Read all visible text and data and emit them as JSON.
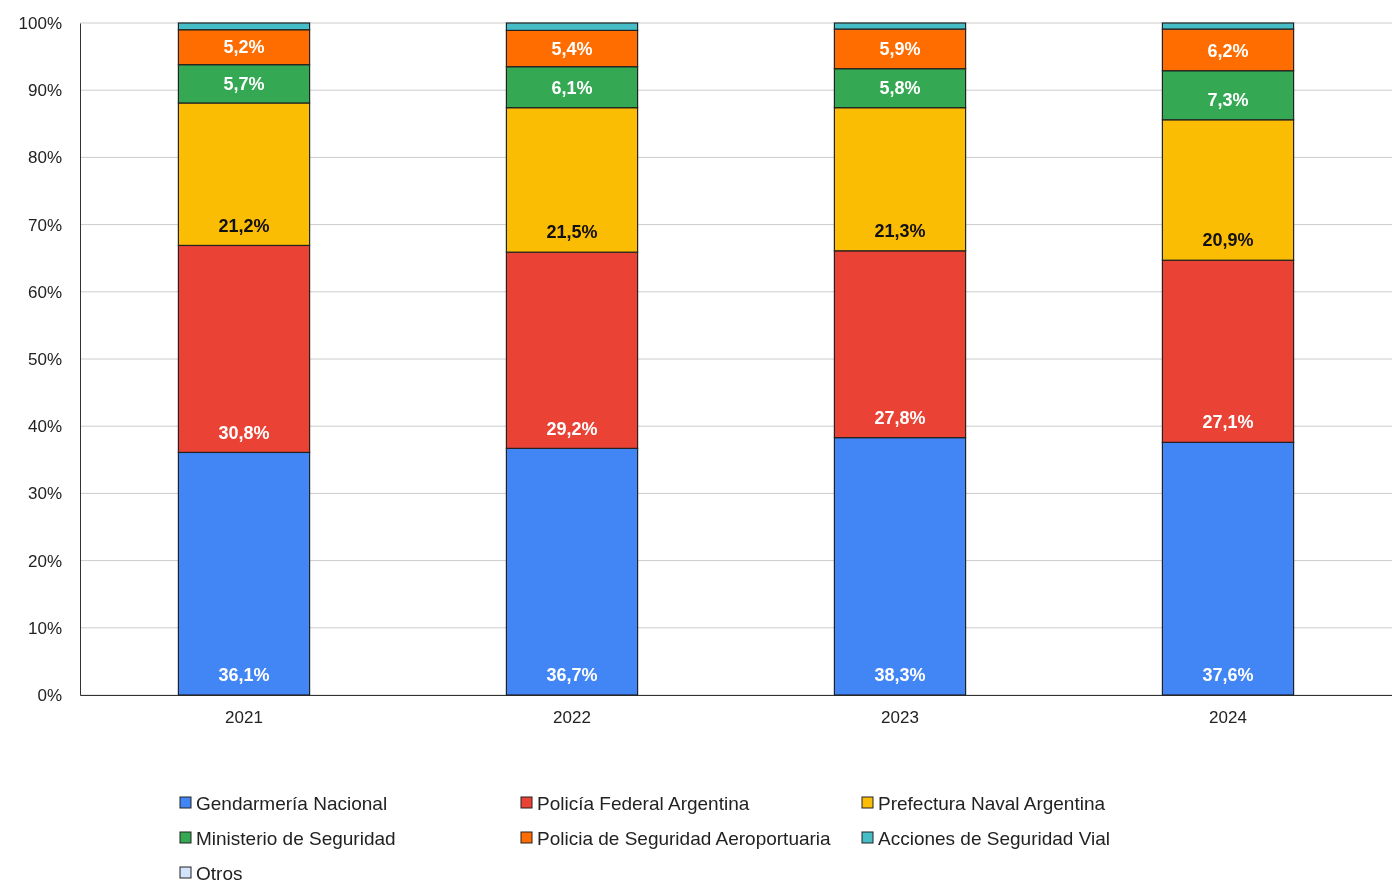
{
  "chart_data": {
    "type": "bar",
    "stacked": true,
    "categories": [
      "2021",
      "2022",
      "2023",
      "2024"
    ],
    "series": [
      {
        "name": "Gendarmería Nacional",
        "color": "#4285f4",
        "values": [
          36.1,
          36.7,
          38.3,
          37.6
        ],
        "value_labels": [
          "36,1%",
          "36,7%",
          "38,3%",
          "37,6%"
        ]
      },
      {
        "name": "Policía Federal Argentina",
        "color": "#ea4335",
        "values": [
          30.8,
          29.2,
          27.8,
          27.1
        ],
        "value_labels": [
          "30,8%",
          "29,2%",
          "27,8%",
          "27,1%"
        ]
      },
      {
        "name": "Prefectura Naval Argentina",
        "color": "#fbbc04",
        "values": [
          21.2,
          21.5,
          21.3,
          20.9
        ],
        "value_labels": [
          "21,2%",
          "21,5%",
          "21,3%",
          "20,9%"
        ]
      },
      {
        "name": "Ministerio de Seguridad",
        "color": "#34a853",
        "values": [
          5.7,
          6.1,
          5.8,
          7.3
        ],
        "value_labels": [
          "5,7%",
          "6,1%",
          "5,8%",
          "7,3%"
        ]
      },
      {
        "name": "Policia de Seguridad Aeroportuaria",
        "color": "#ff6d01",
        "values": [
          5.2,
          5.4,
          5.9,
          6.2
        ],
        "value_labels": [
          "5,2%",
          "5,4%",
          "5,9%",
          "6,2%"
        ]
      },
      {
        "name": "Acciones de Seguridad Vial",
        "color": "#46bdc6",
        "values": [
          1.0,
          1.1,
          0.9,
          0.9
        ]
      },
      {
        "name": "Otros",
        "color": "#d2e3fc",
        "values": [
          0,
          0,
          0,
          0
        ]
      }
    ],
    "ylim": [
      0,
      100
    ],
    "yticks": [
      {
        "value": 0,
        "label": "0%"
      },
      {
        "value": 10,
        "label": "10%"
      },
      {
        "value": 20,
        "label": "20%"
      },
      {
        "value": 30,
        "label": "30%"
      },
      {
        "value": 40,
        "label": "40%"
      },
      {
        "value": 50,
        "label": "50%"
      },
      {
        "value": 60,
        "label": "60%"
      },
      {
        "value": 70,
        "label": "70%"
      },
      {
        "value": 80,
        "label": "80%"
      },
      {
        "value": 90,
        "label": "90%"
      },
      {
        "value": 100,
        "label": "100%"
      }
    ],
    "grid": "y",
    "legend": "bottom"
  }
}
